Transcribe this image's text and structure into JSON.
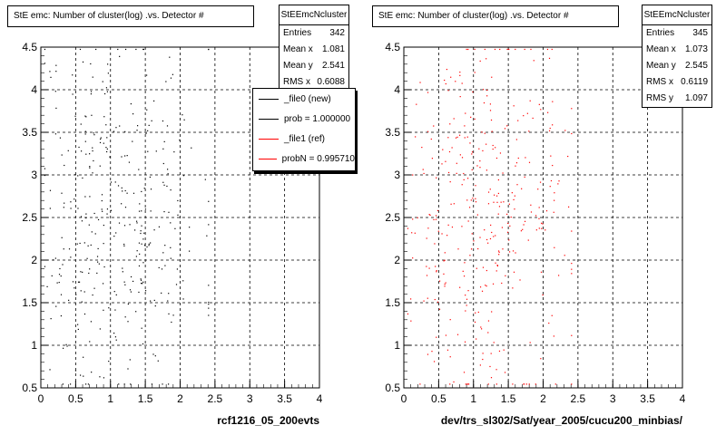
{
  "panels": [
    {
      "id": "left",
      "title": "StE emc: Number of cluster(log) .vs. Detector #",
      "xlabel": "rcf1216_05_200evts",
      "stats": {
        "name": "StEEmcNcluster",
        "rows": [
          {
            "label": "Entries",
            "value": "342"
          },
          {
            "label": "Mean x",
            "value": "1.081"
          },
          {
            "label": "Mean y",
            "value": "2.541"
          },
          {
            "label": "RMS x",
            "value": "0.6088"
          }
        ]
      },
      "legend": {
        "entries": [
          {
            "label": "_file0 (new)",
            "color": "#000000"
          },
          {
            "label": "prob = 1.000000",
            "color": "#000000"
          },
          {
            "label": "_file1 (ref)",
            "color": "#ff0000"
          },
          {
            "label": "probN = 0.995710",
            "color": "#ff0000"
          }
        ]
      }
    },
    {
      "id": "right",
      "title": "StE emc: Number of cluster(log) .vs. Detector #",
      "xlabel": "dev/trs_sl302/Sat/year_2005/cucu200_minbias/",
      "stats": {
        "name": "StEEmcNcluster",
        "rows": [
          {
            "label": "Entries",
            "value": "345"
          },
          {
            "label": "Mean x",
            "value": "1.073"
          },
          {
            "label": "Mean y",
            "value": "2.545"
          },
          {
            "label": "RMS x",
            "value": "0.6119"
          },
          {
            "label": "RMS y",
            "value": "1.097"
          }
        ]
      }
    }
  ],
  "chart_data": [
    {
      "type": "scatter",
      "title": "StE emc: Number of cluster(log) .vs. Detector #",
      "xlabel": "rcf1216_05_200evts",
      "ylabel": "",
      "xlim": [
        0,
        4
      ],
      "ylim": [
        0.5,
        4.5
      ],
      "xticks": [
        "0",
        "0.5",
        "1",
        "1.5",
        "2",
        "2.5",
        "3",
        "3.5",
        "4"
      ],
      "yticks": [
        "0.5",
        "1",
        "1.5",
        "2",
        "2.5",
        "3",
        "3.5",
        "4",
        "4.5"
      ],
      "grid": true,
      "series": [
        {
          "name": "_file0 (new)",
          "color": "#000000",
          "n": 342,
          "mean_x": 1.081,
          "mean_y": 2.541,
          "rms_x": 0.6088,
          "rms_y": 1.1,
          "seed": 11
        }
      ]
    },
    {
      "type": "scatter",
      "title": "StE emc: Number of cluster(log) .vs. Detector #",
      "xlabel": "dev/trs_sl302/Sat/year_2005/cucu200_minbias/",
      "ylabel": "",
      "xlim": [
        0,
        4
      ],
      "ylim": [
        0.5,
        4.5
      ],
      "xticks": [
        "0",
        "0.5",
        "1",
        "1.5",
        "2",
        "2.5",
        "3",
        "3.5",
        "4"
      ],
      "yticks": [
        "0.5",
        "1",
        "1.5",
        "2",
        "2.5",
        "3",
        "3.5",
        "4",
        "4.5"
      ],
      "grid": true,
      "series": [
        {
          "name": "_file1 (ref)",
          "color": "#ff0000",
          "n": 345,
          "mean_x": 1.073,
          "mean_y": 2.545,
          "rms_x": 0.6119,
          "rms_y": 1.097,
          "seed": 29
        }
      ]
    }
  ]
}
